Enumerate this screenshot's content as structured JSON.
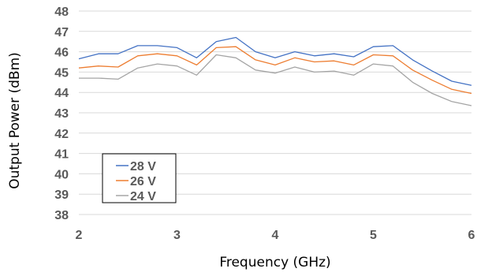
{
  "chart_data": {
    "type": "line",
    "xlabel": "Frequency (GHz)",
    "ylabel": "Output Power (dBm)",
    "xlim": [
      2,
      6
    ],
    "ylim": [
      38,
      48
    ],
    "xticks": [
      2,
      3,
      4,
      5,
      6
    ],
    "yticks": [
      38,
      39,
      40,
      41,
      42,
      43,
      44,
      45,
      46,
      47,
      48
    ],
    "grid": "horizontal",
    "legend": "bottom-left",
    "x": [
      2.0,
      2.2,
      2.4,
      2.6,
      2.8,
      3.0,
      3.2,
      3.4,
      3.6,
      3.8,
      4.0,
      4.2,
      4.4,
      4.6,
      4.8,
      5.0,
      5.2,
      5.4,
      5.6,
      5.8,
      6.0
    ],
    "series": [
      {
        "name": "28 V",
        "color": "#4472c4",
        "values": [
          45.65,
          45.9,
          45.9,
          46.3,
          46.3,
          46.2,
          45.7,
          46.5,
          46.7,
          46.0,
          45.7,
          46.0,
          45.8,
          45.9,
          45.75,
          46.25,
          46.3,
          45.6,
          45.05,
          44.55,
          44.35
        ]
      },
      {
        "name": "26 V",
        "color": "#ed7d31",
        "values": [
          45.2,
          45.3,
          45.25,
          45.8,
          45.9,
          45.8,
          45.35,
          46.2,
          46.25,
          45.6,
          45.35,
          45.7,
          45.5,
          45.55,
          45.35,
          45.85,
          45.8,
          45.1,
          44.6,
          44.15,
          43.95
        ]
      },
      {
        "name": "24 V",
        "color": "#a5a5a5",
        "values": [
          44.7,
          44.7,
          44.65,
          45.2,
          45.4,
          45.3,
          44.85,
          45.85,
          45.7,
          45.1,
          44.95,
          45.25,
          45.0,
          45.05,
          44.85,
          45.4,
          45.3,
          44.5,
          43.95,
          43.55,
          43.35
        ]
      }
    ]
  }
}
